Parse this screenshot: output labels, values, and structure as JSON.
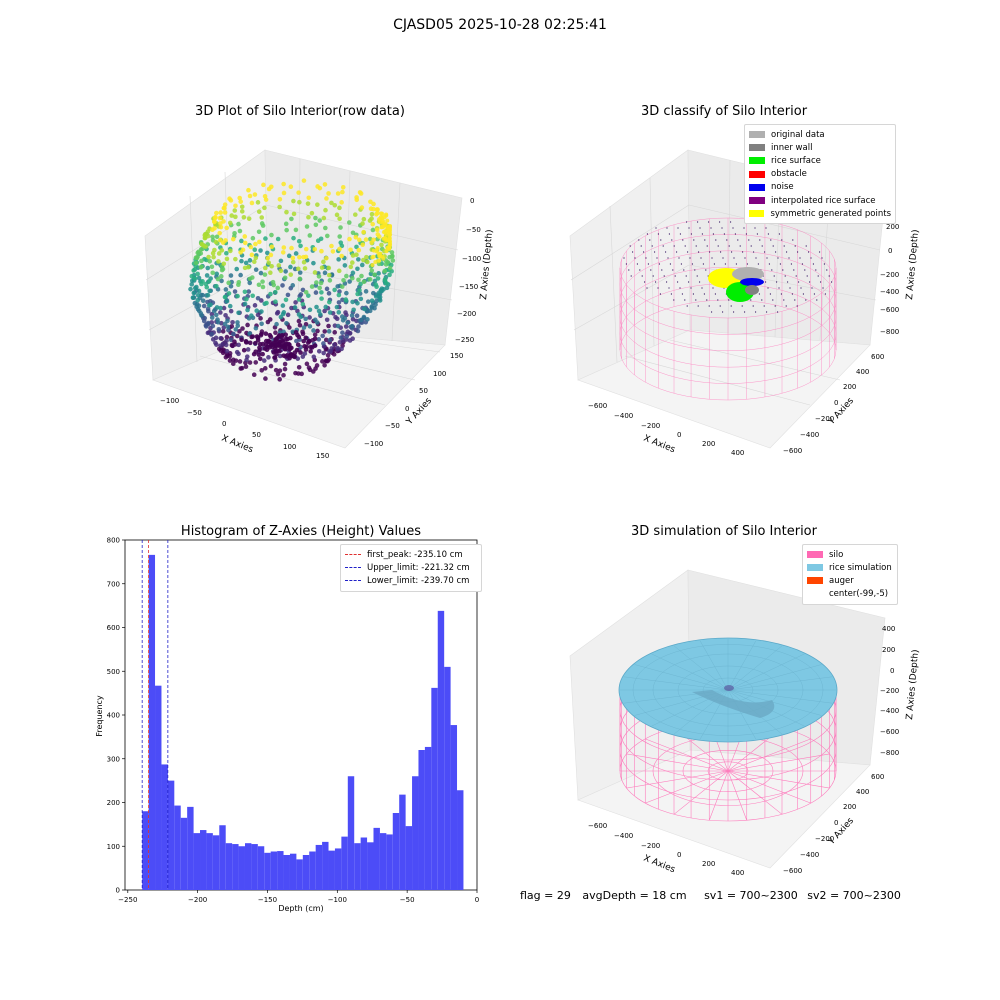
{
  "suptitle": "CJASD05 2025-10-28 02:25:41",
  "footer": {
    "flag": "flag = 29",
    "avg_depth": "avgDepth = 18 cm",
    "sv1": "sv1 = 700~2300",
    "sv2": "sv2 = 700~2300"
  },
  "colors": {
    "hist_bar": "#4c4cf7",
    "first_peak": "#e03030",
    "limit": "#2020c8",
    "silo_wire": "#ff69b4",
    "rice_sim": "#7ec8e3"
  },
  "chart_data": [
    {
      "type": "scatter3d",
      "title": "3D Plot of Silo Interior(row data)",
      "xlabel": "X Axies",
      "ylabel": "Y Axies",
      "zlabel": "Z Axies (Depth)",
      "x_ticks": [
        "−100",
        "−50",
        "0",
        "50",
        "100",
        "150"
      ],
      "y_ticks": [
        "−100",
        "−50",
        "0",
        "50",
        "100",
        "150"
      ],
      "z_ticks": [
        "0",
        "−50",
        "−100",
        "−150",
        "−200",
        "−250"
      ],
      "colormap": "viridis",
      "description_values": {
        "z_range": [
          -250,
          0
        ]
      }
    },
    {
      "type": "scatter3d",
      "title": "3D classify of Silo Interior",
      "xlabel": "X Axies",
      "ylabel": "Y Axies",
      "zlabel": "Z Axies (Depth)",
      "x_ticks": [
        "−600",
        "−400",
        "−200",
        "0",
        "200",
        "400"
      ],
      "y_ticks": [
        "−600",
        "−400",
        "−200",
        "0",
        "200",
        "400",
        "600"
      ],
      "z_ticks": [
        "200",
        "0",
        "−200",
        "−400",
        "−600",
        "−800"
      ],
      "legend": [
        {
          "label": "original data",
          "color": "#b0b0b0"
        },
        {
          "label": "inner wall",
          "color": "#808080"
        },
        {
          "label": "rice surface",
          "color": "#00ee00"
        },
        {
          "label": "obstacle",
          "color": "#ff0000"
        },
        {
          "label": "noise",
          "color": "#0000ee"
        },
        {
          "label": "interpolated rice surface",
          "color": "#800080"
        },
        {
          "label": "symmetric generated points",
          "color": "#ffff00"
        }
      ]
    },
    {
      "type": "bar",
      "title": "Histogram of Z-Axies (Height) Values",
      "xlabel": "Depth (cm)",
      "ylabel": "Frequency",
      "xlim": [
        -252,
        0
      ],
      "ylim": [
        0,
        800
      ],
      "x_ticks": [
        -250,
        -200,
        -150,
        -100,
        -50,
        0
      ],
      "y_ticks": [
        0,
        100,
        200,
        300,
        400,
        500,
        600,
        700,
        800
      ],
      "bin_start": -239.7,
      "bin_width": 4.6,
      "values": [
        180,
        766,
        467,
        287,
        250,
        193,
        165,
        190,
        130,
        137,
        130,
        125,
        148,
        107,
        105,
        100,
        107,
        105,
        100,
        85,
        88,
        89,
        80,
        83,
        70,
        80,
        88,
        103,
        110,
        90,
        95,
        122,
        260,
        107,
        120,
        109,
        142,
        130,
        127,
        176,
        218,
        146,
        260,
        320,
        327,
        462,
        638,
        510,
        377,
        228
      ],
      "vlines": [
        {
          "label": "first_peak: -235.10 cm",
          "x": -235.1,
          "color": "#e03030"
        },
        {
          "label": "Upper_limit: -221.32 cm",
          "x": -221.32,
          "color": "#2020c8"
        },
        {
          "label": "Lower_limit: -239.70 cm",
          "x": -239.7,
          "color": "#2020c8"
        }
      ]
    },
    {
      "type": "surface3d",
      "title": "3D simulation of Silo Interior",
      "xlabel": "X Axies",
      "ylabel": "Y Axies",
      "zlabel": "Z Axies (Depth)",
      "x_ticks": [
        "−600",
        "−400",
        "−200",
        "0",
        "200",
        "400"
      ],
      "y_ticks": [
        "−600",
        "−400",
        "−200",
        "0",
        "200",
        "400",
        "600"
      ],
      "z_ticks": [
        "400",
        "200",
        "0",
        "−200",
        "−400",
        "−600",
        "−800"
      ],
      "legend": [
        {
          "label": "silo",
          "color": "#ff69b4"
        },
        {
          "label": "rice simulation",
          "color": "#7ec8e3"
        },
        {
          "label": "auger",
          "color": "#ff4500"
        },
        {
          "label": "center(-99,-5)",
          "color": ""
        }
      ]
    }
  ]
}
